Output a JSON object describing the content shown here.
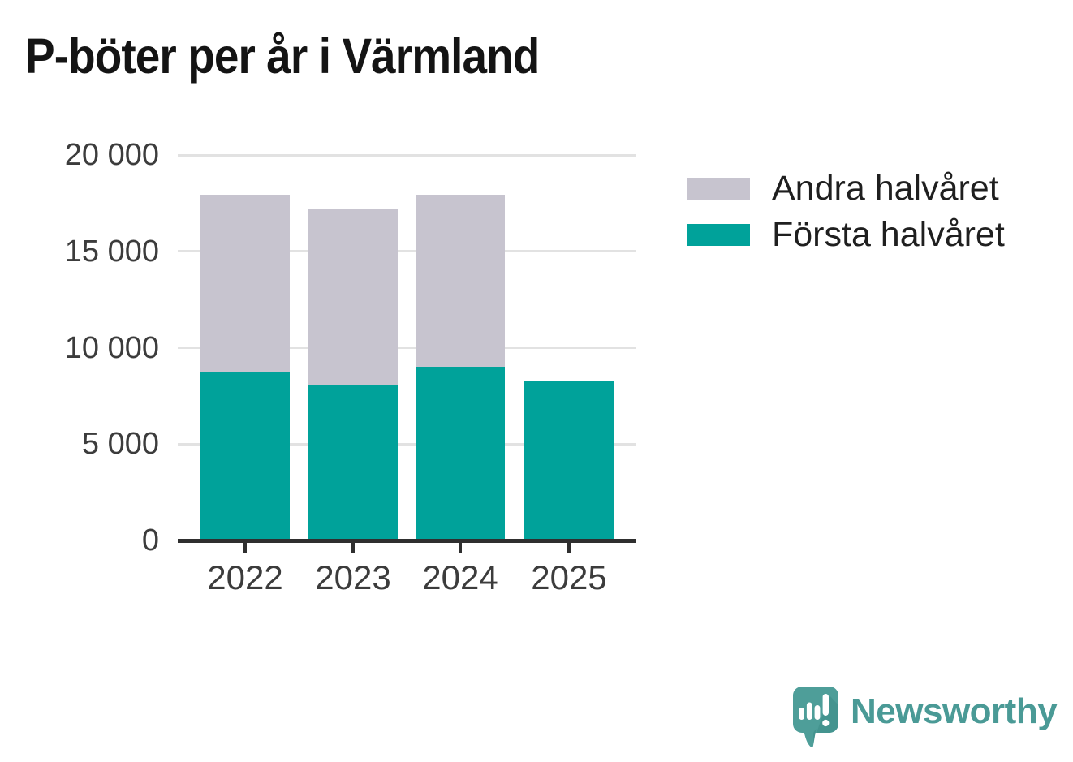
{
  "title": "P-böter per år i Värmland",
  "legend": [
    {
      "label": "Andra halvåret",
      "color": "#c7c4cf"
    },
    {
      "label": "Första halvåret",
      "color": "#00a29a"
    }
  ],
  "chart_data": {
    "type": "bar",
    "stacked": true,
    "title": "P-böter per år i Värmland",
    "categories": [
      "2022",
      "2023",
      "2024",
      "2025"
    ],
    "series": [
      {
        "name": "Första halvåret",
        "color": "#00a29a",
        "values": [
          8700,
          8100,
          9000,
          8300
        ]
      },
      {
        "name": "Andra halvåret",
        "color": "#c7c4cf",
        "values": [
          9250,
          9100,
          8950,
          0
        ]
      }
    ],
    "xlabel": "",
    "ylabel": "",
    "ylim": [
      0,
      20000
    ],
    "yticks": [
      0,
      5000,
      10000,
      15000,
      20000
    ],
    "ytick_labels": [
      "0",
      "5 000",
      "10 000",
      "15 000",
      "20 000"
    ],
    "grid": true,
    "legend_position": "upper-right-outside",
    "colors": {
      "gridline": "#e2e2e2",
      "axis": "#2f2f2f",
      "tick_label": "#3c3c3c"
    }
  },
  "branding": {
    "wordmark": "Newsworthy",
    "logo_icon": "newsworthy-speech-bubble-bar-chart-icon",
    "color": "#4a9a96"
  }
}
